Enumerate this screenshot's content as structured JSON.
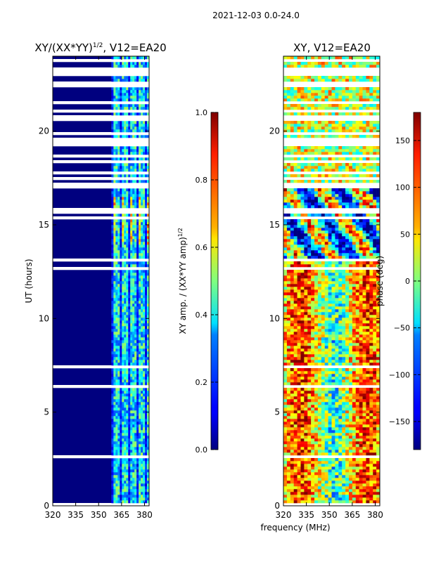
{
  "figure_title": "2021-12-03 0.0-24.0",
  "chart_data": [
    {
      "type": "heatmap",
      "title": "XY/(XX*YY)",
      "title_exponent": "1/2",
      "title_suffix": ", V12=EA20",
      "xlabel": "",
      "ylabel": "UT (hours)",
      "xlim": [
        320,
        383
      ],
      "ylim": [
        0,
        24
      ],
      "x_ticks": [
        320,
        335,
        350,
        365,
        380
      ],
      "y_ticks": [
        0,
        5,
        10,
        15,
        20
      ],
      "colorbar": {
        "label": "XY amp. / (XX*YY amp)",
        "label_exponent": "1/2",
        "range": [
          0.0,
          1.0
        ],
        "ticks": [
          "0.0",
          "0.2",
          "0.4",
          "0.6",
          "0.8",
          "1.0"
        ],
        "colormap": "jet"
      }
    },
    {
      "type": "heatmap",
      "title": "XY, V12=EA20",
      "xlabel": "frequency (MHz)",
      "ylabel": "",
      "xlim": [
        320,
        383
      ],
      "ylim": [
        0,
        24
      ],
      "x_ticks": [
        320,
        335,
        350,
        365,
        380
      ],
      "y_ticks": [
        0,
        5,
        10,
        15,
        20
      ],
      "colorbar": {
        "label": "phase (deg)",
        "range": [
          -180,
          180
        ],
        "ticks": [
          "−150",
          "−100",
          "−50",
          "0",
          "50",
          "100",
          "150"
        ],
        "colormap": "jet"
      }
    }
  ]
}
